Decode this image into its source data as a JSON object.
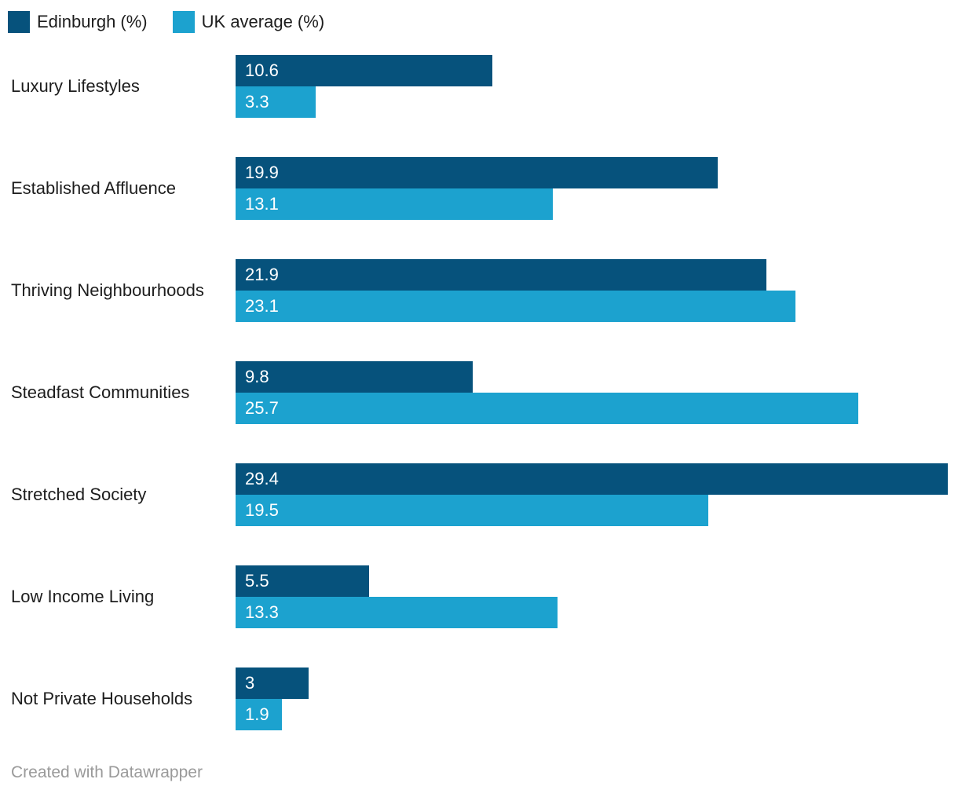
{
  "chart_data": {
    "type": "bar",
    "orientation": "horizontal",
    "title": "",
    "xlabel": "",
    "ylabel": "",
    "xlim": [
      0,
      29.4
    ],
    "grid": false,
    "legend_position": "top",
    "categories": [
      "Luxury Lifestyles",
      "Established Affluence",
      "Thriving Neighbourhoods",
      "Steadfast Communities",
      "Stretched Society",
      "Low Income Living",
      "Not Private Households"
    ],
    "series": [
      {
        "name": "Edinburgh (%)",
        "color": "#06527c",
        "values": [
          10.6,
          19.9,
          21.9,
          9.8,
          29.4,
          5.5,
          3
        ]
      },
      {
        "name": "UK average (%)",
        "color": "#1ca2cf",
        "values": [
          3.3,
          13.1,
          23.1,
          25.7,
          19.5,
          13.3,
          1.9
        ]
      }
    ]
  },
  "colors": {
    "edinburgh": "#06527c",
    "uk_average": "#1ca2cf",
    "label_text": "#1d1d1d",
    "value_text": "#ffffff",
    "footer_text": "#9a9a9a"
  },
  "footer": {
    "credit": "Created with Datawrapper"
  }
}
